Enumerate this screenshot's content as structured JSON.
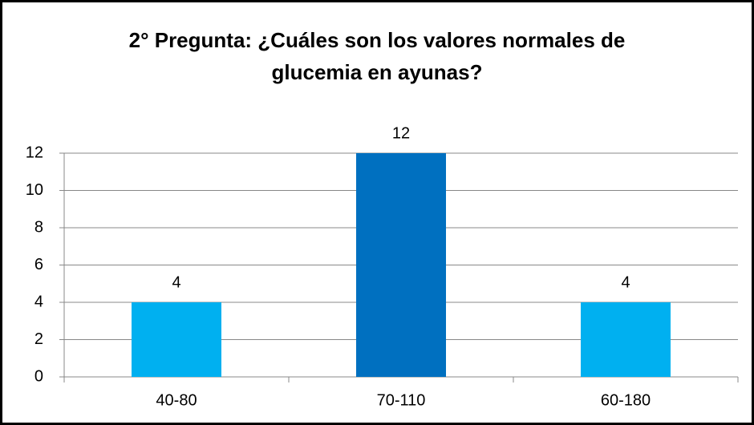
{
  "chart_data": {
    "type": "bar",
    "title": "2° Pregunta: ¿Cuáles son los valores normales de glucemia en ayunas?",
    "categories": [
      "40-80",
      "70-110",
      "60-180"
    ],
    "values": [
      4,
      12,
      4
    ],
    "colors": [
      "#00b0f0",
      "#0070c0",
      "#00b0f0"
    ],
    "ylim": [
      0,
      12
    ],
    "yticks": [
      0,
      2,
      4,
      6,
      8,
      10,
      12
    ],
    "grid": true
  }
}
